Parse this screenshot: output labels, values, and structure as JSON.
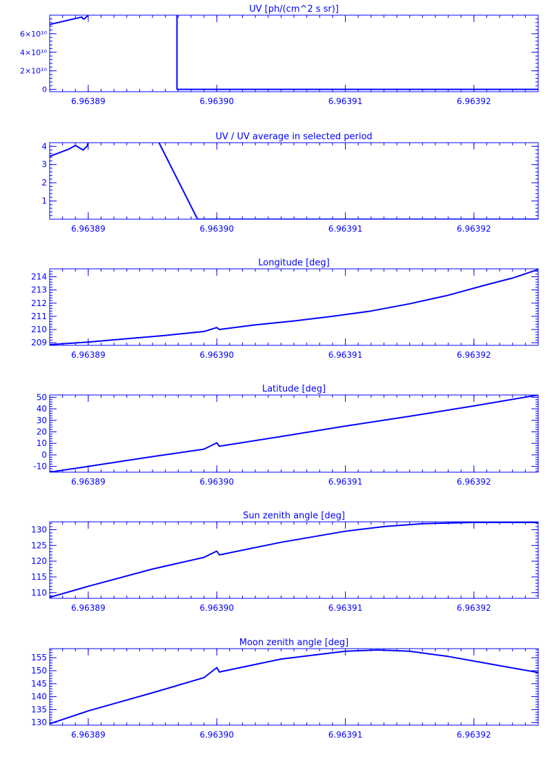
{
  "colors": {
    "line": "#0000ff",
    "background": "#ffffff"
  },
  "chart_data": [
    {
      "type": "line",
      "title": "UV [ph/(cm^2 s sr)]",
      "xlabel": "",
      "ylabel": "",
      "xlim": [
        6.963887,
        6.963925
      ],
      "ylim": [
        -2500000000.0,
        80000000000.0
      ],
      "x_ticks": [
        6.96389,
        6.9639,
        6.96391,
        6.96392
      ],
      "x_tick_labels": [
        "6.96389",
        "6.96390",
        "6.96391",
        "6.96392"
      ],
      "y_ticks": [
        0,
        20000000000.0,
        40000000000.0,
        60000000000.0
      ],
      "y_tick_labels": [
        "0",
        "2×10¹⁰",
        "4×10¹⁰",
        "6×10¹⁰"
      ],
      "series": [
        {
          "x": [
            6.963887,
            6.9638895,
            6.9638896,
            6.9638897,
            6.96389
          ],
          "y": [
            70000000000.0,
            78000000000.0,
            76000000000.0,
            76000000000.0,
            80000000000.0
          ]
        },
        {
          "x": [
            6.9638969,
            6.9638969,
            6.9638972,
            6.963925
          ],
          "y": [
            80000000000.0,
            0,
            0,
            0
          ]
        }
      ]
    },
    {
      "type": "line",
      "title": "UV / UV average in selected period",
      "xlabel": "",
      "ylabel": "",
      "xlim": [
        6.963887,
        6.963925
      ],
      "ylim": [
        0,
        4.2
      ],
      "x_ticks": [
        6.96389,
        6.9639,
        6.96391,
        6.96392
      ],
      "x_tick_labels": [
        "6.96389",
        "6.96390",
        "6.96391",
        "6.96392"
      ],
      "y_ticks": [
        1,
        2,
        3,
        4
      ],
      "y_tick_labels": [
        "1",
        "2",
        "3",
        "4"
      ],
      "series": [
        {
          "x": [
            6.963887,
            6.9638885,
            6.963889,
            6.9638896,
            6.9638899,
            6.96389
          ],
          "y": [
            3.45,
            3.85,
            4.05,
            3.8,
            4.0,
            4.2
          ]
        },
        {
          "x": [
            6.9638955,
            6.9638985,
            6.963925
          ],
          "y": [
            4.2,
            0.0,
            0.0
          ]
        }
      ]
    },
    {
      "type": "line",
      "title": "Longitude [deg]",
      "xlabel": "",
      "ylabel": "",
      "xlim": [
        6.963887,
        6.963925
      ],
      "ylim": [
        208.8,
        214.6
      ],
      "x_ticks": [
        6.96389,
        6.9639,
        6.96391,
        6.96392
      ],
      "x_tick_labels": [
        "6.96389",
        "6.96390",
        "6.96391",
        "6.96392"
      ],
      "y_ticks": [
        209,
        210,
        211,
        212,
        213,
        214
      ],
      "y_tick_labels": [
        "209",
        "210",
        "211",
        "212",
        "213",
        "214"
      ],
      "series": [
        {
          "x": [
            6.963887,
            6.96389,
            6.963893,
            6.963896,
            6.963899,
            6.9639,
            6.9639002,
            6.963903,
            6.963906,
            6.963909,
            6.963912,
            6.963915,
            6.963918,
            6.963921,
            6.963923,
            6.963925
          ],
          "y": [
            208.85,
            209.05,
            209.3,
            209.55,
            209.85,
            210.15,
            210.0,
            210.35,
            210.65,
            211.0,
            211.4,
            211.95,
            212.6,
            213.4,
            213.9,
            214.55
          ]
        }
      ]
    },
    {
      "type": "line",
      "title": "Latitude [deg]",
      "xlabel": "",
      "ylabel": "",
      "xlim": [
        6.963887,
        6.963925
      ],
      "ylim": [
        -15,
        52
      ],
      "x_ticks": [
        6.96389,
        6.9639,
        6.96391,
        6.96392
      ],
      "x_tick_labels": [
        "6.96389",
        "6.96390",
        "6.96391",
        "6.96392"
      ],
      "y_ticks": [
        -10,
        0,
        10,
        20,
        30,
        40,
        50
      ],
      "y_tick_labels": [
        "-10",
        "0",
        "10",
        "20",
        "30",
        "40",
        "50"
      ],
      "series": [
        {
          "x": [
            6.963887,
            6.96389,
            6.963895,
            6.963899,
            6.9639,
            6.9639002,
            6.963905,
            6.96391,
            6.963915,
            6.96392,
            6.963925
          ],
          "y": [
            -15,
            -10,
            -1.5,
            5,
            10.5,
            7.5,
            16,
            25,
            33.5,
            42.5,
            52
          ]
        }
      ]
    },
    {
      "type": "line",
      "title": "Sun zenith angle [deg]",
      "xlabel": "",
      "ylabel": "",
      "xlim": [
        6.963887,
        6.963925
      ],
      "ylim": [
        108.2,
        132.5
      ],
      "x_ticks": [
        6.96389,
        6.9639,
        6.96391,
        6.96392
      ],
      "x_tick_labels": [
        "6.96389",
        "6.96390",
        "6.96391",
        "6.96392"
      ],
      "y_ticks": [
        110,
        115,
        120,
        125,
        130
      ],
      "y_tick_labels": [
        "110",
        "115",
        "120",
        "125",
        "130"
      ],
      "series": [
        {
          "x": [
            6.963887,
            6.96389,
            6.963895,
            6.963899,
            6.9639,
            6.9639002,
            6.963905,
            6.96391,
            6.963913,
            6.963916,
            6.96392,
            6.963925
          ],
          "y": [
            108.5,
            112.0,
            117.5,
            121.2,
            123.2,
            122.0,
            126.0,
            129.5,
            131.0,
            131.9,
            132.3,
            132.3
          ]
        }
      ]
    },
    {
      "type": "line",
      "title": "Moon zenith angle [deg]",
      "xlabel": "",
      "ylabel": "",
      "xlim": [
        6.963887,
        6.963925
      ],
      "ylim": [
        129,
        158.5
      ],
      "x_ticks": [
        6.96389,
        6.9639,
        6.96391,
        6.96392
      ],
      "x_tick_labels": [
        "6.96389",
        "6.96390",
        "6.96391",
        "6.96392"
      ],
      "y_ticks": [
        130,
        135,
        140,
        145,
        150,
        155
      ],
      "y_tick_labels": [
        "130",
        "135",
        "140",
        "145",
        "150",
        "155"
      ],
      "series": [
        {
          "x": [
            6.963887,
            6.96389,
            6.963895,
            6.963899,
            6.9639,
            6.9639002,
            6.963905,
            6.96391,
            6.9639125,
            6.963915,
            6.963918,
            6.963921,
            6.963925
          ],
          "y": [
            129.5,
            134.5,
            141.5,
            147.3,
            151.2,
            149.5,
            154.5,
            157.5,
            158.0,
            157.5,
            155.5,
            152.8,
            149.3
          ]
        }
      ]
    }
  ]
}
